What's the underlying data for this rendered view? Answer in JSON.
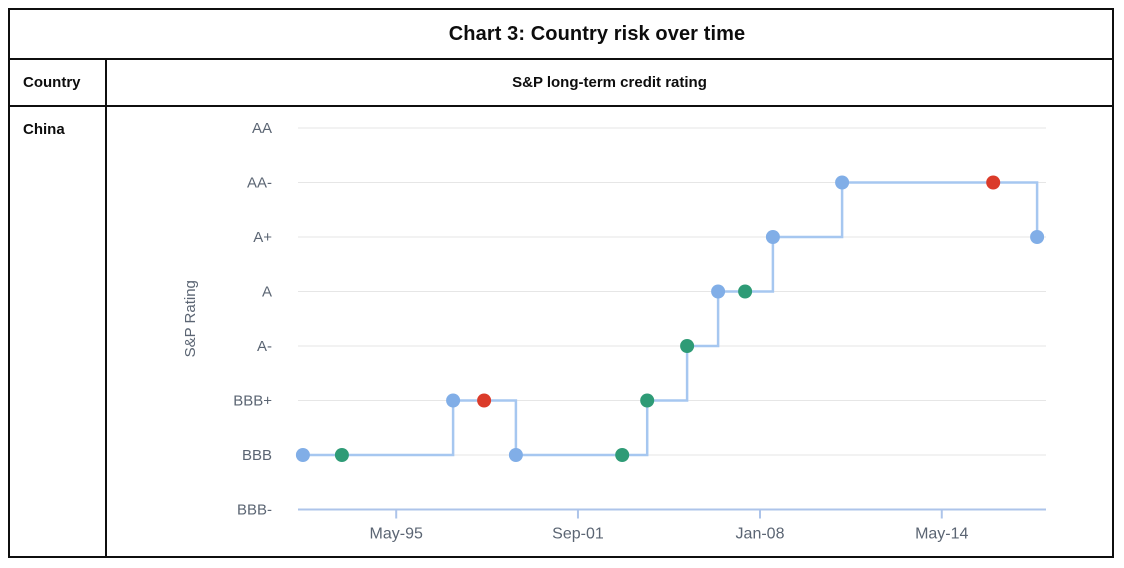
{
  "table": {
    "title": "Chart 3: Country risk over time",
    "country_header": "Country",
    "rating_header": "S&P long-term credit rating",
    "rows": [
      {
        "country": "China"
      }
    ]
  },
  "chart_data": {
    "type": "line",
    "subtype": "step-after",
    "title": "",
    "xlabel": "",
    "ylabel": "S&P Rating",
    "y_categories_top_to_bottom": [
      "AA",
      "AA-",
      "A+",
      "A",
      "A-",
      "BBB+",
      "BBB",
      "BBB-"
    ],
    "x_ticks": [
      {
        "label": "May-95",
        "year": 1995.37
      },
      {
        "label": "Sep-01",
        "year": 2001.7
      },
      {
        "label": "Jan-08",
        "year": 2008.04
      },
      {
        "label": "May-14",
        "year": 2014.37
      }
    ],
    "x_range_years": [
      1991.95,
      2018.0
    ],
    "grid": "horizontal",
    "legend": "none",
    "series": [
      {
        "name": "China S&P long-term rating",
        "points": [
          {
            "approx_date": "Feb-92",
            "year": 1992.12,
            "rating": "BBB",
            "marker": "blue"
          },
          {
            "approx_date": "Jun-93",
            "year": 1993.48,
            "rating": "BBB",
            "marker": "green"
          },
          {
            "approx_date": "May-97",
            "year": 1997.35,
            "rating": "BBB+",
            "marker": "blue"
          },
          {
            "approx_date": "Jun-98",
            "year": 1998.43,
            "rating": "BBB+",
            "marker": "red"
          },
          {
            "approx_date": "Jul-99",
            "year": 1999.54,
            "rating": "BBB",
            "marker": "blue"
          },
          {
            "approx_date": "Mar-03",
            "year": 2003.24,
            "rating": "BBB",
            "marker": "green"
          },
          {
            "approx_date": "Feb-04",
            "year": 2004.11,
            "rating": "BBB+",
            "marker": "green"
          },
          {
            "approx_date": "Jul-05",
            "year": 2005.5,
            "rating": "A-",
            "marker": "green"
          },
          {
            "approx_date": "Jul-06",
            "year": 2006.58,
            "rating": "A",
            "marker": "blue"
          },
          {
            "approx_date": "Jul-07",
            "year": 2007.52,
            "rating": "A",
            "marker": "green"
          },
          {
            "approx_date": "Jun-08",
            "year": 2008.49,
            "rating": "A+",
            "marker": "blue"
          },
          {
            "approx_date": "Dec-10",
            "year": 2010.9,
            "rating": "AA-",
            "marker": "blue"
          },
          {
            "approx_date": "Feb-16",
            "year": 2016.16,
            "rating": "AA-",
            "marker": "red"
          },
          {
            "approx_date": "Sep-17",
            "year": 2017.69,
            "rating": "A+",
            "marker": "blue"
          }
        ]
      }
    ],
    "colors": {
      "line": "#a6c7f0",
      "marker_blue": "#81aee7",
      "marker_green": "#2e9b76",
      "marker_red": "#db3b2a",
      "axis_line": "#adc4ea",
      "gridline": "#e6e6e6",
      "axis_label": "#5b6573"
    }
  }
}
